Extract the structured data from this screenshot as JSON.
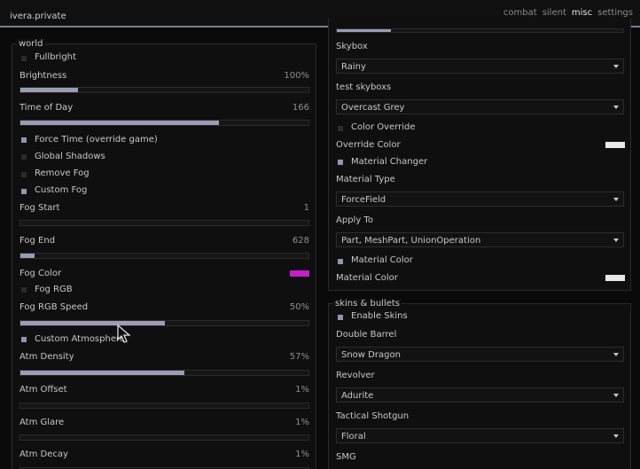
{
  "app": {
    "title": "ivera.private"
  },
  "nav": {
    "tabs": [
      "combat",
      "silent",
      "misc",
      "settings"
    ],
    "active": "misc"
  },
  "world": {
    "title": "world",
    "fullbright": {
      "label": "Fullbright",
      "checked": false
    },
    "brightness": {
      "label": "Brightness",
      "value": "100%",
      "fraction": 0.2
    },
    "time_of_day": {
      "label": "Time of Day",
      "value": "166",
      "fraction": 0.69
    },
    "force_time": {
      "label": "Force Time (override game)",
      "checked": true
    },
    "global_shadows": {
      "label": "Global Shadows",
      "checked": false
    },
    "remove_fog": {
      "label": "Remove Fog",
      "checked": false
    },
    "custom_fog": {
      "label": "Custom Fog",
      "checked": true
    },
    "fog_start": {
      "label": "Fog Start",
      "value": "1",
      "fraction": 0.0
    },
    "fog_end": {
      "label": "Fog End",
      "value": "628",
      "fraction": 0.05
    },
    "fog_color": {
      "label": "Fog Color",
      "color": "#c41fc9"
    },
    "fog_rgb": {
      "label": "Fog RGB",
      "checked": false
    },
    "fog_rgb_speed": {
      "label": "Fog RGB Speed",
      "value": "50%",
      "fraction": 0.5
    },
    "custom_atmosphere": {
      "label": "Custom Atmosphere",
      "checked": true
    },
    "atm_density": {
      "label": "Atm Density",
      "value": "57%",
      "fraction": 0.57
    },
    "atm_offset": {
      "label": "Atm Offset",
      "value": "1%",
      "fraction": 0.0
    },
    "atm_glare": {
      "label": "Atm Glare",
      "value": "1%",
      "fraction": 0.0
    },
    "atm_decay": {
      "label": "Atm Decay",
      "value": "1%",
      "fraction": 0.0
    }
  },
  "sky": {
    "top_slider_fraction": 0.19,
    "skybox": {
      "label": "Skybox",
      "value": "Rainy"
    },
    "test_skyboxs": {
      "label": "test skyboxs",
      "value": "Overcast Grey"
    },
    "color_override": {
      "label": "Color Override",
      "checked": false
    },
    "override_color": {
      "label": "Override Color",
      "color": "#e8e8e8"
    },
    "material_changer": {
      "label": "Material Changer",
      "checked": true
    },
    "material_type": {
      "label": "Material Type",
      "value": "ForceField"
    },
    "apply_to": {
      "label": "Apply To",
      "value": "Part, MeshPart, UnionOperation"
    },
    "material_color_toggle": {
      "label": "Material Color",
      "checked": true
    },
    "material_color": {
      "label": "Material Color",
      "color": "#e8e8e8"
    }
  },
  "skins": {
    "title": "skins & bullets",
    "enable_skins": {
      "label": "Enable Skins",
      "checked": true
    },
    "double_barrel": {
      "label": "Double Barrel",
      "value": "Snow Dragon"
    },
    "revolver": {
      "label": "Revolver",
      "value": "Adurite"
    },
    "tactical_shotgun": {
      "label": "Tactical Shotgun",
      "value": "Floral"
    },
    "smg": {
      "label": "SMG"
    }
  },
  "colors": {
    "accent": "#9a9db5",
    "checkbox_on": "#9295ae",
    "checkbox_off": "#2b2b2b"
  },
  "icons": {
    "cursor": "cursor-icon",
    "dropdown": "chevron-down-icon"
  }
}
